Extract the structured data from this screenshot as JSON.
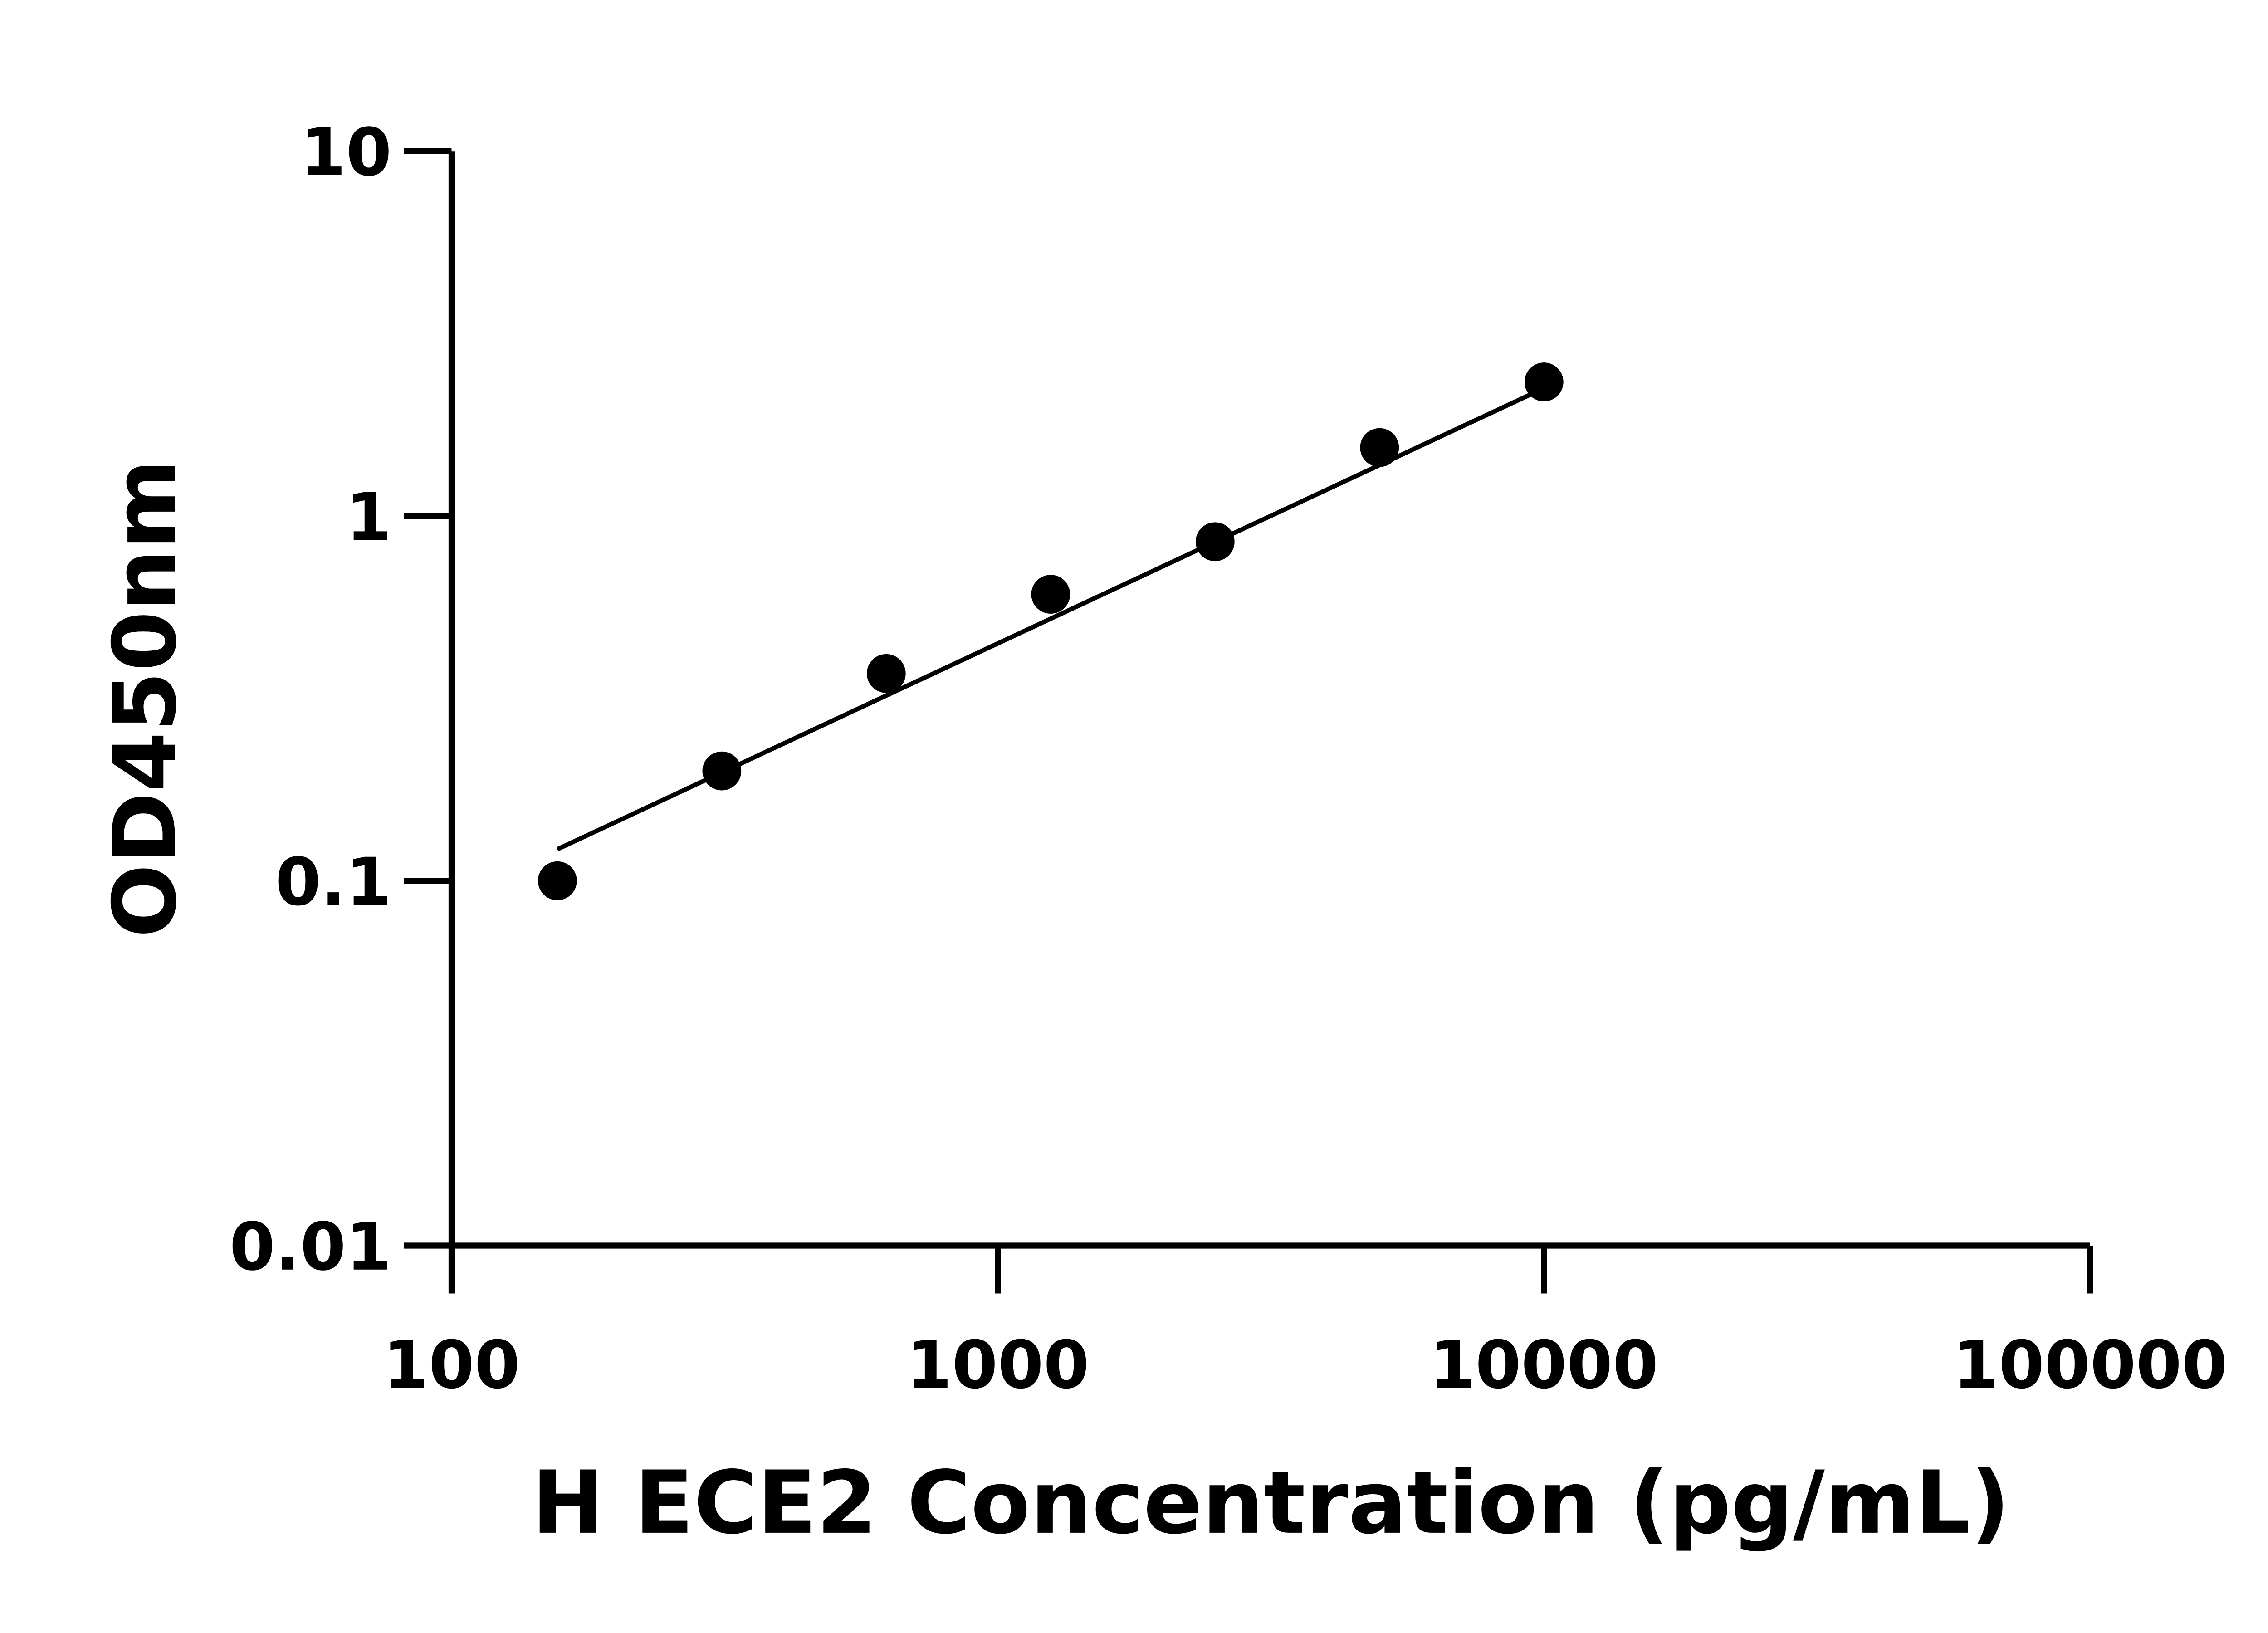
{
  "chart_data": {
    "type": "scatter",
    "title": "",
    "xlabel": "H ECE2 Concentration (pg/mL)",
    "ylabel": "OD450nm",
    "xscale": "log",
    "yscale": "log",
    "xlim": [
      100,
      100000
    ],
    "ylim": [
      0.01,
      10
    ],
    "xticks": [
      "100",
      "1000",
      "10000",
      "100000"
    ],
    "yticks": [
      "0.01",
      "0.1",
      "1",
      "10"
    ],
    "grid": false,
    "series": [
      {
        "x": [
          156.25,
          312.5,
          625,
          1250,
          2500,
          5000,
          10000
        ],
        "y": [
          0.1,
          0.2,
          0.37,
          0.61,
          0.85,
          1.54,
          2.33
        ],
        "marker": "circle",
        "color": "#000000"
      }
    ],
    "fit_line": {
      "x": [
        156.25,
        10000
      ],
      "y": [
        0.122,
        2.24
      ],
      "color": "#000000"
    }
  }
}
